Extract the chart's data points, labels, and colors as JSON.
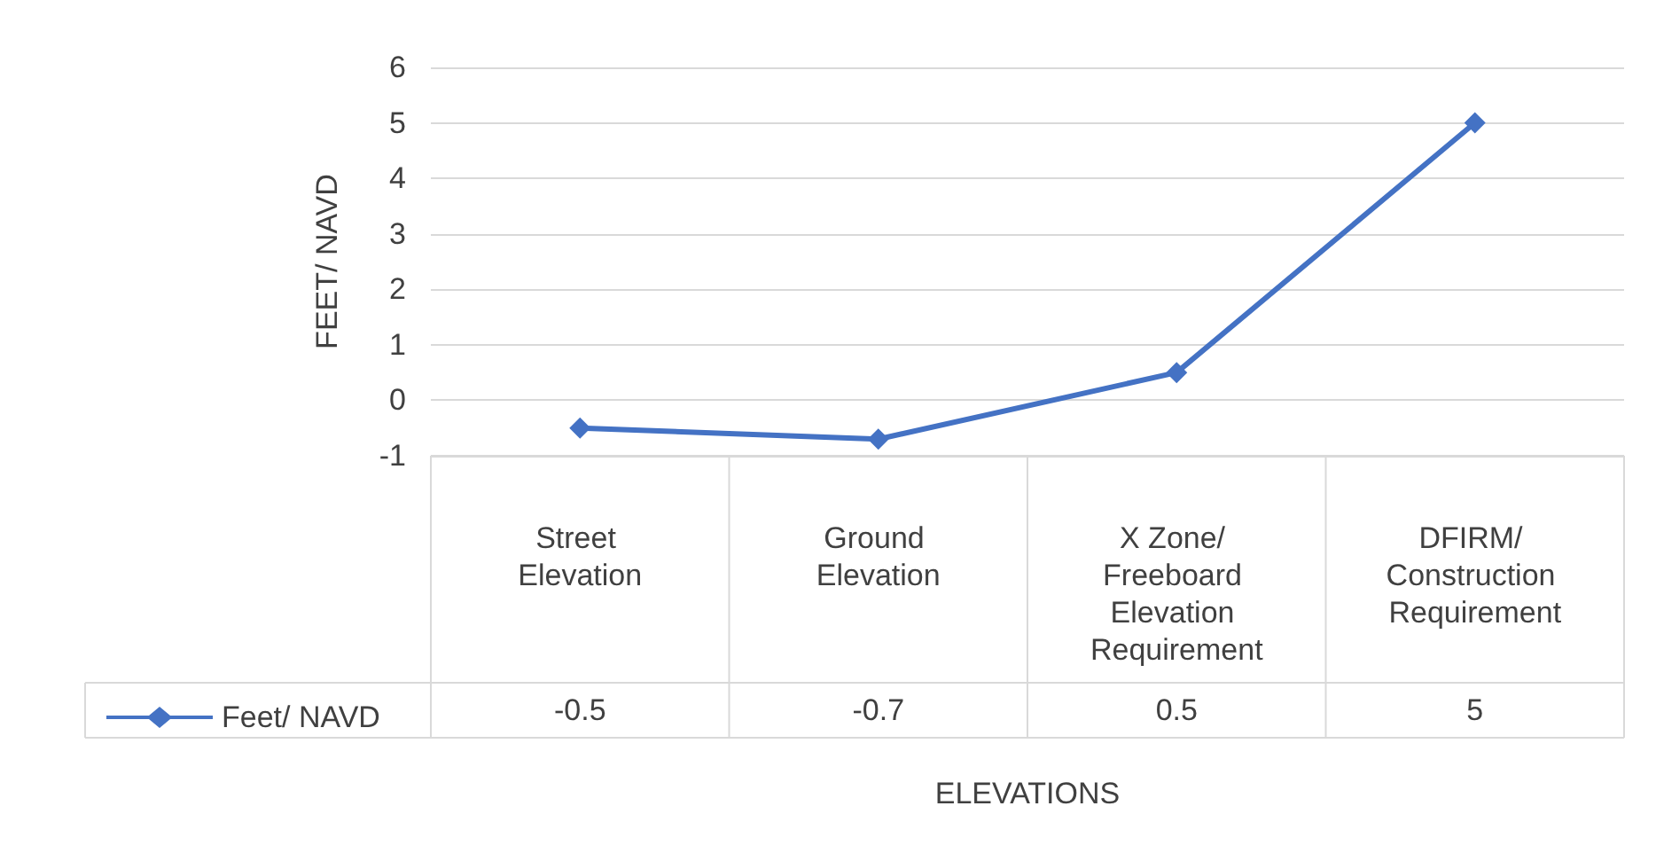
{
  "chart_data": {
    "type": "line",
    "xlabel": "ELEVATIONS",
    "ylabel": "FEET/ NAVD",
    "categories": [
      "Street Elevation",
      "Ground Elevation",
      "X Zone/ Freeboard Elevation Requirement",
      "DFIRM/ Construction Requirement"
    ],
    "series": [
      {
        "name": "Feet/ NAVD",
        "color": "#4472c4",
        "values": [
          -0.5,
          -0.7,
          0.5,
          5
        ]
      }
    ],
    "ylim": [
      -1,
      6
    ],
    "yticks": [
      -1,
      0,
      1,
      2,
      3,
      4,
      5,
      6
    ],
    "grid": "y",
    "marker": "diamond",
    "line_style": "solid",
    "data_labels": true,
    "legend": "bottom left"
  }
}
